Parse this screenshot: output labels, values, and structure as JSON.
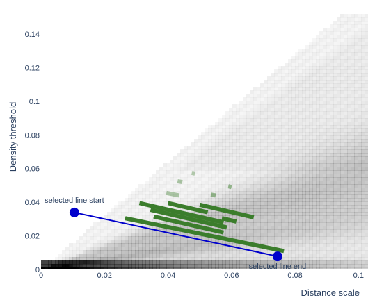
{
  "chart_data": {
    "type": "heatmap",
    "title": "",
    "xlabel": "Distance scale",
    "ylabel": "Density threshold",
    "xlim": [
      0,
      0.103
    ],
    "ylim": [
      0,
      0.152
    ],
    "x_ticks": [
      {
        "value": 0,
        "label": "0"
      },
      {
        "value": 0.02,
        "label": "0.02"
      },
      {
        "value": 0.04,
        "label": "0.04"
      },
      {
        "value": 0.06,
        "label": "0.06"
      },
      {
        "value": 0.08,
        "label": "0.08"
      },
      {
        "value": 0.1,
        "label": "0.1"
      }
    ],
    "y_ticks": [
      {
        "value": 0,
        "label": "0"
      },
      {
        "value": 0.02,
        "label": "0.02"
      },
      {
        "value": 0.04,
        "label": "0.04"
      },
      {
        "value": 0.06,
        "label": "0.06"
      },
      {
        "value": 0.08,
        "label": "0.08"
      },
      {
        "value": 0.1,
        "label": "0.1"
      },
      {
        "value": 0.12,
        "label": "0.12"
      },
      {
        "value": 0.14,
        "label": "0.14"
      }
    ],
    "grid": false,
    "heatmap_color": "#000000",
    "green_segments": {
      "color": "#3b7d2c",
      "segments": [
        {
          "x0": 0.0265,
          "y0": 0.0305,
          "x1": 0.0765,
          "y1": 0.011,
          "opacity": 1
        },
        {
          "x0": 0.031,
          "y0": 0.0395,
          "x1": 0.0575,
          "y1": 0.028,
          "opacity": 1
        },
        {
          "x0": 0.0345,
          "y0": 0.0355,
          "x1": 0.0585,
          "y1": 0.025,
          "opacity": 1
        },
        {
          "x0": 0.0355,
          "y0": 0.0315,
          "x1": 0.0575,
          "y1": 0.022,
          "opacity": 1
        },
        {
          "x0": 0.04,
          "y0": 0.0395,
          "x1": 0.0525,
          "y1": 0.034,
          "opacity": 1
        },
        {
          "x0": 0.05,
          "y0": 0.0385,
          "x1": 0.067,
          "y1": 0.031,
          "opacity": 1
        },
        {
          "x0": 0.057,
          "y0": 0.0305,
          "x1": 0.0615,
          "y1": 0.0285,
          "opacity": 1
        },
        {
          "x0": 0.0395,
          "y0": 0.0455,
          "x1": 0.0435,
          "y1": 0.044,
          "opacity": 0.4
        },
        {
          "x0": 0.043,
          "y0": 0.0525,
          "x1": 0.0445,
          "y1": 0.052,
          "opacity": 0.4
        },
        {
          "x0": 0.0475,
          "y0": 0.0575,
          "x1": 0.0485,
          "y1": 0.057,
          "opacity": 0.35
        },
        {
          "x0": 0.0535,
          "y0": 0.0445,
          "x1": 0.055,
          "y1": 0.044,
          "opacity": 0.5
        },
        {
          "x0": 0.059,
          "y0": 0.0495,
          "x1": 0.06,
          "y1": 0.049,
          "opacity": 0.5
        }
      ]
    },
    "selected_line": {
      "color": "#0000cc",
      "start": {
        "x": 0.0105,
        "y": 0.0339,
        "label": "selected line start"
      },
      "end": {
        "x": 0.0745,
        "y": 0.0078,
        "label": "selected line end"
      }
    }
  }
}
